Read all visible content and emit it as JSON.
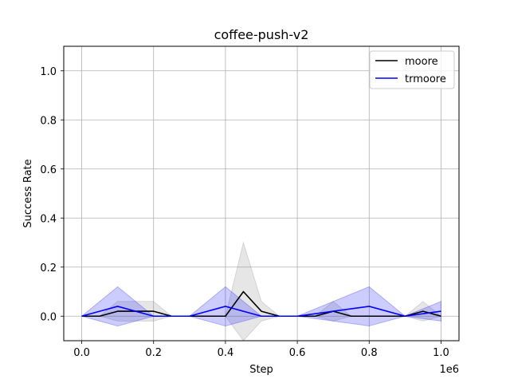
{
  "chart_data": {
    "type": "line",
    "title": "coffee-push-v2",
    "xlabel": "Step",
    "ylabel": "Success Rate",
    "x_scale_label": "1e6",
    "xlim": [
      -0.05,
      1.05
    ],
    "ylim": [
      -0.1,
      1.1
    ],
    "xticks": [
      0.0,
      0.2,
      0.4,
      0.6,
      0.8,
      1.0
    ],
    "xtick_labels": [
      "0.0",
      "0.2",
      "0.4",
      "0.6",
      "0.8",
      "1.0"
    ],
    "yticks": [
      0.0,
      0.2,
      0.4,
      0.6,
      0.8,
      1.0
    ],
    "ytick_labels": [
      "0.0",
      "0.2",
      "0.4",
      "0.6",
      "0.8",
      "1.0"
    ],
    "grid": true,
    "legend_position": "top-right",
    "series": [
      {
        "name": "moore",
        "color": "#000000",
        "band_color": "#808080",
        "x": [
          0.0,
          0.05,
          0.1,
          0.15,
          0.2,
          0.25,
          0.3,
          0.35,
          0.4,
          0.45,
          0.5,
          0.55,
          0.6,
          0.65,
          0.7,
          0.75,
          0.8,
          0.85,
          0.9,
          0.95,
          1.0
        ],
        "y": [
          0,
          0,
          0.02,
          0.02,
          0.02,
          0,
          0,
          0,
          0,
          0.1,
          0.02,
          0,
          0,
          0,
          0.02,
          0,
          0,
          0,
          0,
          0.02,
          0
        ],
        "lower": [
          0,
          0,
          -0.02,
          -0.02,
          -0.02,
          0,
          0,
          0,
          0,
          -0.1,
          -0.02,
          0,
          0,
          0,
          -0.02,
          0,
          0,
          0,
          0,
          -0.02,
          0
        ],
        "upper": [
          0,
          0,
          0.06,
          0.06,
          0.06,
          0,
          0,
          0,
          0,
          0.3,
          0.06,
          0,
          0,
          0,
          0.06,
          0,
          0,
          0,
          0,
          0.06,
          0
        ]
      },
      {
        "name": "trmoore",
        "color": "#0000ff",
        "band_color": "#0000ff",
        "x": [
          0.0,
          0.1,
          0.2,
          0.3,
          0.4,
          0.5,
          0.6,
          0.7,
          0.8,
          0.9,
          1.0
        ],
        "y": [
          0,
          0.04,
          0,
          0,
          0.04,
          0,
          0,
          0.02,
          0.04,
          0,
          0.02
        ],
        "lower": [
          0,
          -0.04,
          0,
          0,
          -0.04,
          0,
          0,
          -0.02,
          -0.04,
          0,
          -0.02
        ],
        "upper": [
          0,
          0.12,
          0,
          0,
          0.12,
          0,
          0,
          0.06,
          0.12,
          0,
          0.06
        ]
      }
    ]
  }
}
